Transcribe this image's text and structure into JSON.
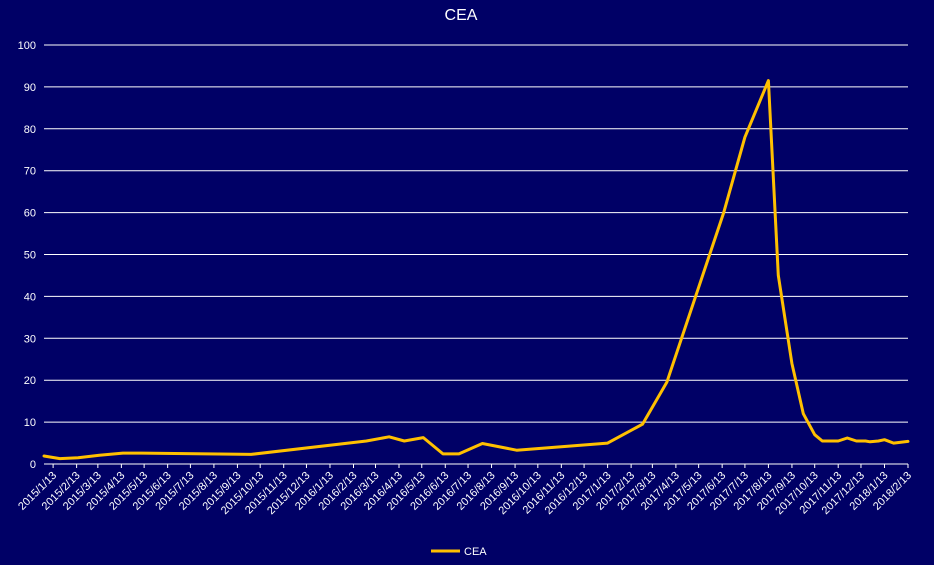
{
  "chart_data": {
    "type": "line",
    "title": "CEA",
    "xlabel": "",
    "ylabel": "",
    "ylim": [
      0,
      100
    ],
    "yticks": [
      0,
      10,
      20,
      30,
      40,
      50,
      60,
      70,
      80,
      90,
      100
    ],
    "grid": true,
    "legend": "bottom",
    "colors": {
      "background": "#000066",
      "series": "#FFC000",
      "text": "#ffffff",
      "grid": "#ffffff"
    },
    "x_tick_labels": [
      "2015/1/13",
      "2015/2/13",
      "2015/3/13",
      "2015/4/13",
      "2015/5/13",
      "2015/6/13",
      "2015/7/13",
      "2015/8/13",
      "2015/9/13",
      "2015/10/13",
      "2015/11/13",
      "2015/12/13",
      "2016/1/13",
      "2016/2/13",
      "2016/3/13",
      "2016/4/13",
      "2016/5/13",
      "2016/6/13",
      "2016/7/13",
      "2016/8/13",
      "2016/9/13",
      "2016/10/13",
      "2016/11/13",
      "2016/12/13",
      "2017/1/13",
      "2017/2/13",
      "2017/3/13",
      "2017/4/13",
      "2017/5/13",
      "2017/6/13",
      "2017/7/13",
      "2017/8/13",
      "2017/9/13",
      "2017/10/13",
      "2017/11/13",
      "2017/12/13",
      "2018/1/13",
      "2018/2/13"
    ],
    "series": [
      {
        "name": "CEA",
        "points": [
          {
            "x": "2015/1/1",
            "y": 1.9
          },
          {
            "x": "2015/1/22",
            "y": 1.3
          },
          {
            "x": "2015/2/15",
            "y": 1.5
          },
          {
            "x": "2015/3/15",
            "y": 2.1
          },
          {
            "x": "2015/4/15",
            "y": 2.6
          },
          {
            "x": "2015/5/10",
            "y": 2.6
          },
          {
            "x": "2015/10/1",
            "y": 2.3
          },
          {
            "x": "2016/3/1",
            "y": 5.5
          },
          {
            "x": "2016/3/31",
            "y": 6.5
          },
          {
            "x": "2016/4/20",
            "y": 5.5
          },
          {
            "x": "2016/5/15",
            "y": 6.3
          },
          {
            "x": "2016/6/10",
            "y": 2.4
          },
          {
            "x": "2016/7/1",
            "y": 2.4
          },
          {
            "x": "2016/8/1",
            "y": 4.9
          },
          {
            "x": "2016/9/15",
            "y": 3.3
          },
          {
            "x": "2017/1/13",
            "y": 5.0
          },
          {
            "x": "2017/2/28",
            "y": 9.5
          },
          {
            "x": "2017/4/1",
            "y": 19.5
          },
          {
            "x": "2017/6/15",
            "y": 60.0
          },
          {
            "x": "2017/7/13",
            "y": 78.0
          },
          {
            "x": "2017/8/13",
            "y": 91.5
          },
          {
            "x": "2017/8/26",
            "y": 45.0
          },
          {
            "x": "2017/9/13",
            "y": 24.0
          },
          {
            "x": "2017/9/28",
            "y": 12.0
          },
          {
            "x": "2017/10/13",
            "y": 7.0
          },
          {
            "x": "2017/10/23",
            "y": 5.5
          },
          {
            "x": "2017/11/13",
            "y": 5.5
          },
          {
            "x": "2017/11/25",
            "y": 6.2
          },
          {
            "x": "2017/12/7",
            "y": 5.5
          },
          {
            "x": "2017/12/19",
            "y": 5.5
          },
          {
            "x": "2017/12/25",
            "y": 5.3
          },
          {
            "x": "2018/1/5",
            "y": 5.5
          },
          {
            "x": "2018/1/13",
            "y": 5.8
          },
          {
            "x": "2018/1/25",
            "y": 5.0
          },
          {
            "x": "2018/2/13",
            "y": 5.4
          }
        ]
      }
    ]
  }
}
